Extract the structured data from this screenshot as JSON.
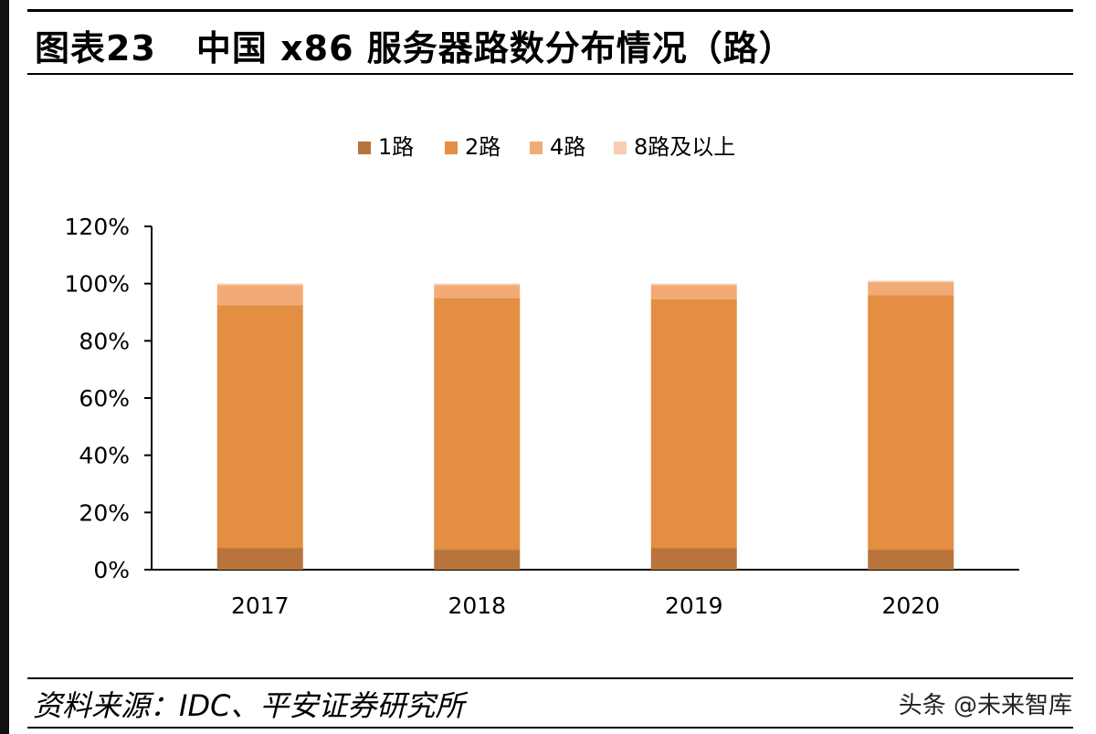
{
  "header": {
    "figure_number": "图表23",
    "title": "中国 x86 服务器路数分布情况（路）"
  },
  "footer": {
    "source": "资料来源：IDC、平安证券研究所",
    "watermark": "头条 @未来智库"
  },
  "colors": {
    "1路": "#b8743b",
    "2路": "#e38e42",
    "4路": "#f2ab75",
    "8路及以上": "#f8cdb0"
  },
  "chart_data": {
    "type": "bar",
    "stacked": true,
    "categories": [
      "2017",
      "2018",
      "2019",
      "2020"
    ],
    "series": [
      {
        "name": "1路",
        "values": [
          7.5,
          7,
          7.5,
          7
        ]
      },
      {
        "name": "2路",
        "values": [
          85,
          88,
          87,
          89
        ]
      },
      {
        "name": "4路",
        "values": [
          7,
          4.5,
          5,
          4.5
        ]
      },
      {
        "name": "8路及以上",
        "values": [
          0.5,
          0.5,
          0.5,
          0.5
        ]
      }
    ],
    "ylim": [
      0,
      120
    ],
    "yticks": [
      "0%",
      "20%",
      "40%",
      "60%",
      "80%",
      "100%",
      "120%"
    ],
    "legend_position": "top",
    "grid": false
  }
}
